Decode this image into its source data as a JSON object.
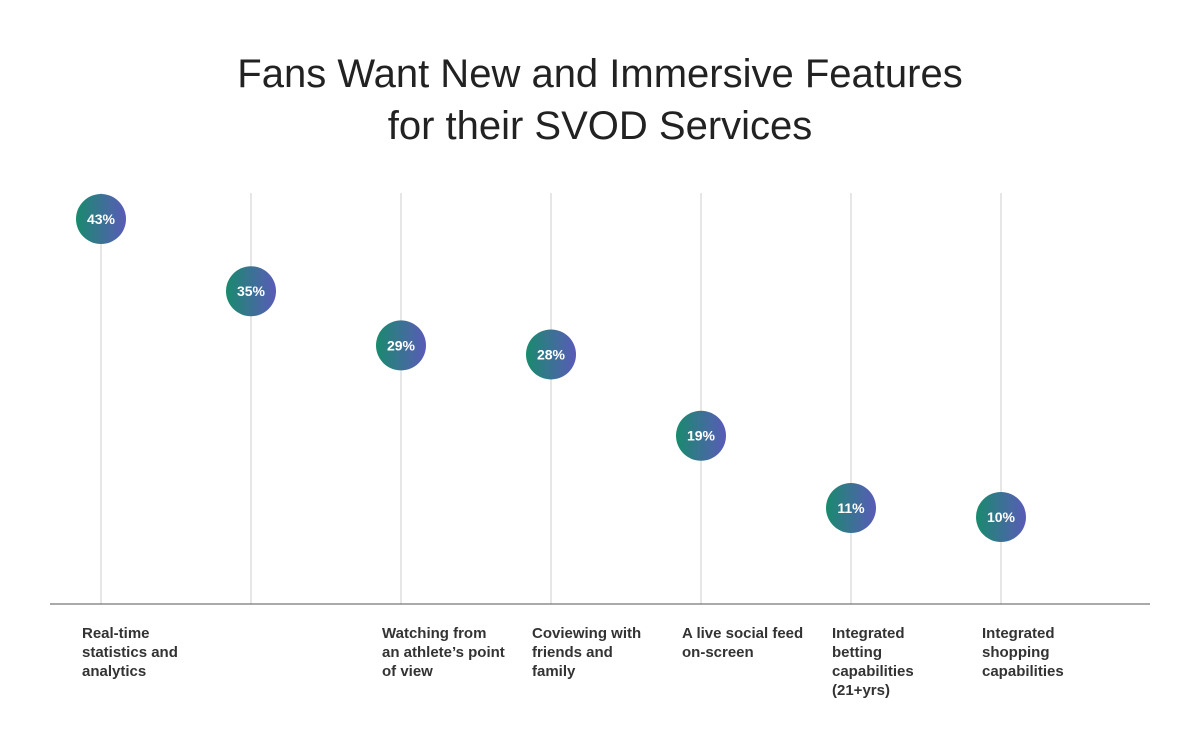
{
  "chart_data": {
    "type": "scatter",
    "title": "Fans Want New and Immersive Features for their SVOD Services",
    "title_lines": [
      "Fans Want New and Immersive Features",
      "for their SVOD Services"
    ],
    "categories": [
      "Real-time\nstatistics and\nanalytics",
      "",
      "Watching from\nan athlete’s point\nof view",
      "Coviewing with\nfriends and\nfamily",
      "A live social feed\non-screen",
      "Integrated\nbetting\ncapabilities\n(21+yrs)",
      "Integrated\nshopping\ncapabilities"
    ],
    "values": [
      43,
      35,
      29,
      28,
      19,
      11,
      10
    ],
    "value_labels": [
      "43%",
      "35%",
      "29%",
      "28%",
      "19%",
      "11%",
      "10%"
    ],
    "ylim": [
      0,
      47
    ],
    "xlabel": "",
    "ylabel": "",
    "grid": "vertical lines at each category",
    "colors": {
      "marker_start": "#1a8a6e",
      "marker_end": "#5a5bb8",
      "gridline": "#cccccc",
      "baseline": "#555555",
      "title": "#222222",
      "label": "#333333"
    }
  }
}
